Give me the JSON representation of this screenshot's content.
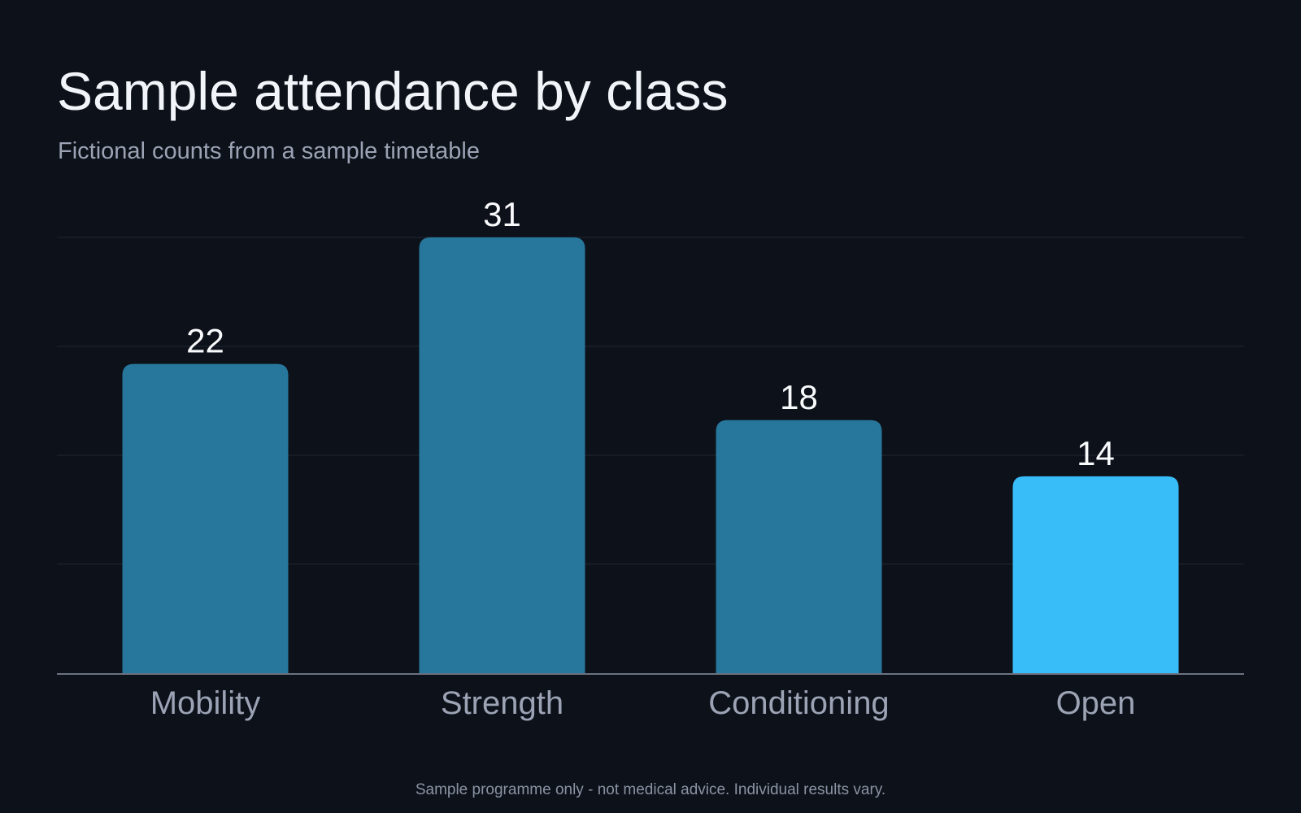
{
  "header": {
    "title": "Sample attendance by class",
    "subtitle": "Fictional counts from a sample timetable"
  },
  "footer": {
    "disclaimer": "Sample programme only - not medical advice. Individual results vary."
  },
  "colors": {
    "background": "#0d111a",
    "bar": "#26779b",
    "bar_highlight": "#38bdf8",
    "gridline": "#1f2633",
    "axis": "#6b7280",
    "value_label": "#f8fafc",
    "category_label": "#9ca3b4"
  },
  "chart_data": {
    "type": "bar",
    "title": "Sample attendance by class",
    "subtitle": "Fictional counts from a sample timetable",
    "categories": [
      "Mobility",
      "Strength",
      "Conditioning",
      "Open"
    ],
    "values": [
      22,
      31,
      18,
      14
    ],
    "value_labels": [
      "22",
      "31",
      "18",
      "14"
    ],
    "highlight_index": 3,
    "xlabel": "",
    "ylabel": "",
    "ylim": [
      0,
      31
    ],
    "grid": true,
    "legend": "none"
  }
}
